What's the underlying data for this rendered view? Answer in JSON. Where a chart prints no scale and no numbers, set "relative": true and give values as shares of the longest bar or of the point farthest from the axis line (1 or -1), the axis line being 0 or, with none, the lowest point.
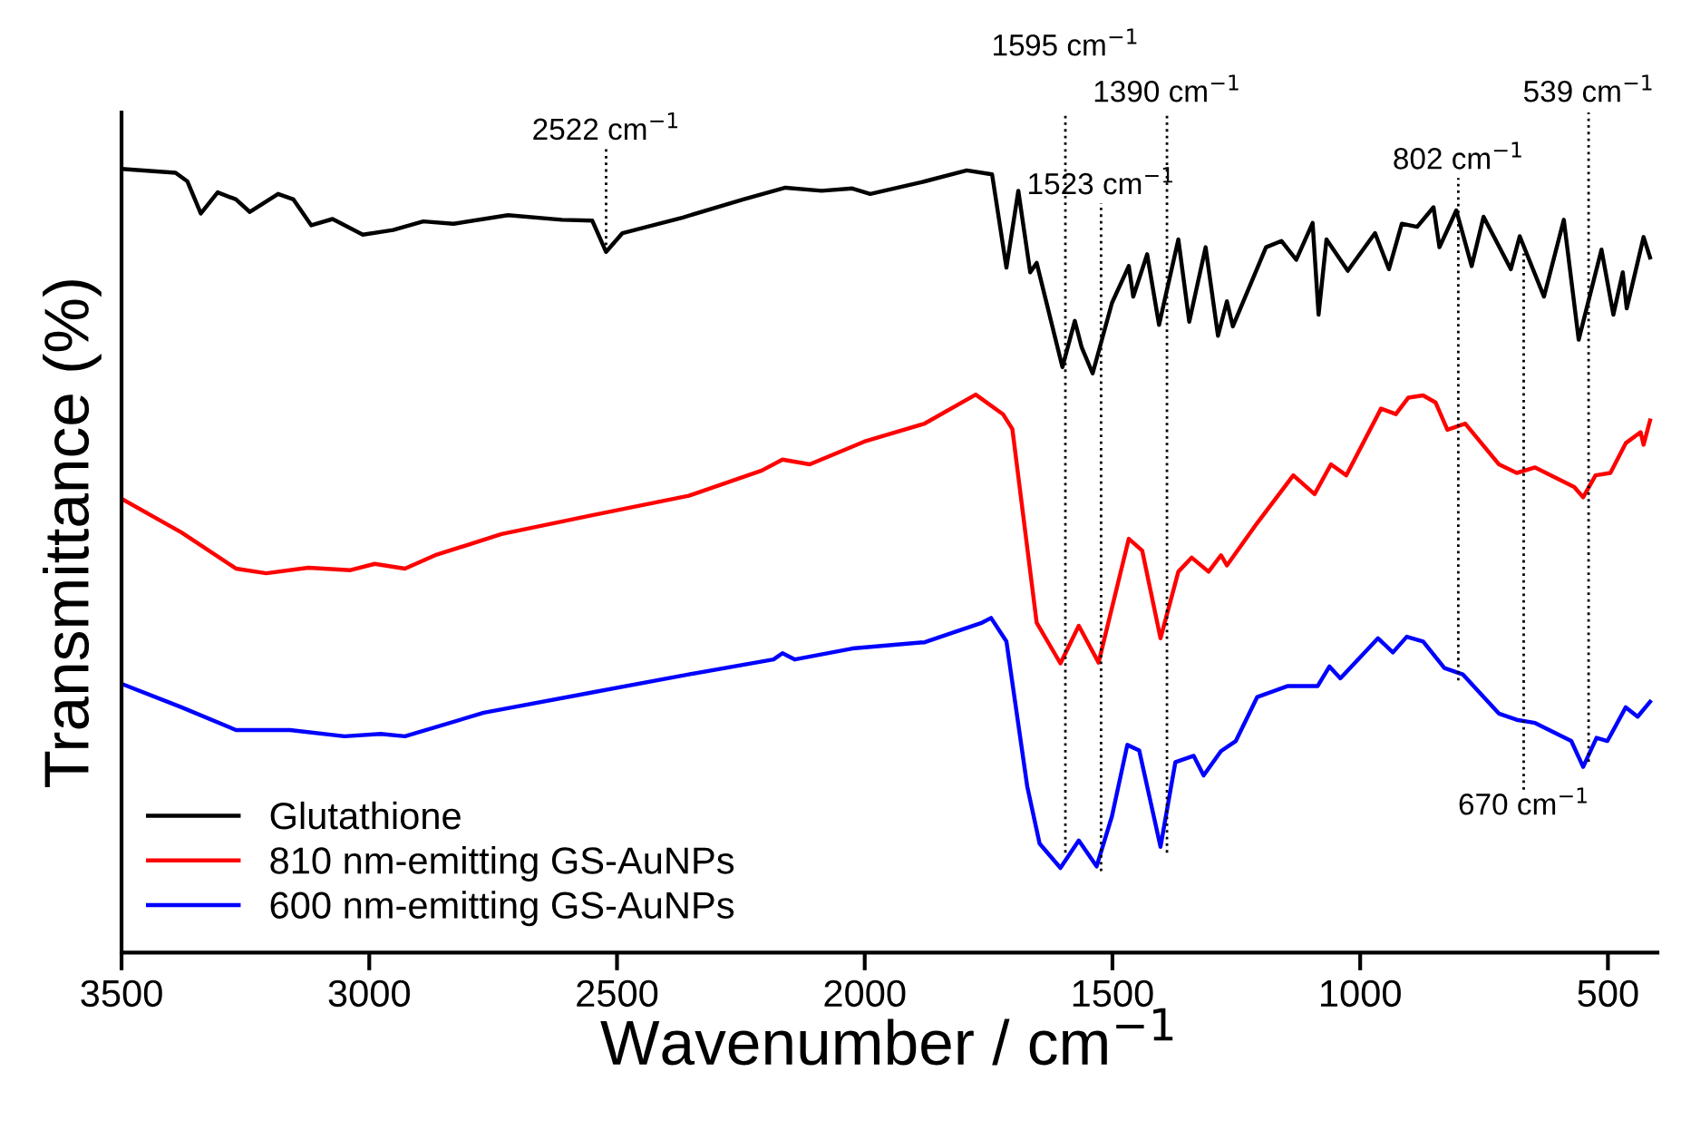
{
  "chart_data": {
    "type": "line",
    "relative": true,
    "xlabel": "Wavenumber / cm$^{−1}$",
    "ylabel": "Transmittance (%)",
    "xlim": [
      3500,
      400
    ],
    "xticks": [
      3500,
      3000,
      2500,
      2000,
      1500,
      1000,
      500
    ],
    "tick_labels": "x",
    "grid": false,
    "legend": "bottom left",
    "line_style": "solid",
    "series": [
      {
        "name": "Glutathione",
        "color": "#000000",
        "x": [
          3500,
          3391,
          3367,
          3340,
          3306,
          3269,
          3241,
          3184,
          3153,
          3117,
          3074,
          3013,
          2952,
          2891,
          2830,
          2720,
          2611,
          2550,
          2522,
          2489,
          2367,
          2245,
          2160,
          2087,
          2025,
          1989,
          1879,
          1794,
          1743,
          1714,
          1690,
          1666,
          1653,
          1601,
          1576,
          1562,
          1540,
          1501,
          1467,
          1458,
          1430,
          1406,
          1367,
          1345,
          1312,
          1287,
          1269,
          1257,
          1190,
          1159,
          1129,
          1096,
          1084,
          1068,
          1025,
          970,
          942,
          916,
          885,
          852,
          840,
          806,
          775,
          751,
          696,
          678,
          629,
          589,
          559,
          513,
          489,
          470,
          462,
          428,
          415
        ],
        "values": [
          1.0,
          0.995,
          0.984,
          0.943,
          0.97,
          0.961,
          0.945,
          0.968,
          0.961,
          0.928,
          0.936,
          0.916,
          0.922,
          0.933,
          0.93,
          0.941,
          0.935,
          0.934,
          0.894,
          0.918,
          0.938,
          0.961,
          0.976,
          0.972,
          0.975,
          0.968,
          0.984,
          0.998,
          0.993,
          0.874,
          0.972,
          0.868,
          0.88,
          0.747,
          0.806,
          0.772,
          0.739,
          0.829,
          0.876,
          0.837,
          0.891,
          0.801,
          0.91,
          0.805,
          0.9,
          0.787,
          0.831,
          0.799,
          0.9,
          0.908,
          0.884,
          0.931,
          0.814,
          0.91,
          0.87,
          0.918,
          0.872,
          0.93,
          0.926,
          0.951,
          0.9,
          0.947,
          0.876,
          0.939,
          0.872,
          0.914,
          0.837,
          0.935,
          0.782,
          0.897,
          0.814,
          0.868,
          0.822,
          0.913,
          0.887
        ]
      },
      {
        "name": "810 nm-emitting GS-AuNPs",
        "color": "#ff0000",
        "x": [
          3500,
          3379,
          3269,
          3208,
          3123,
          3038,
          2989,
          2928,
          2867,
          2733,
          2550,
          2355,
          2208,
          2166,
          2111,
          2001,
          1879,
          1776,
          1721,
          1702,
          1653,
          1605,
          1568,
          1528,
          1467,
          1440,
          1403,
          1367,
          1340,
          1306,
          1281,
          1269,
          1208,
          1135,
          1092,
          1059,
          1028,
          958,
          928,
          903,
          873,
          848,
          824,
          788,
          720,
          684,
          647,
          568,
          550,
          525,
          495,
          464,
          434,
          428,
          415
        ],
        "values": [
          0.579,
          0.536,
          0.49,
          0.484,
          0.491,
          0.488,
          0.496,
          0.49,
          0.507,
          0.534,
          0.558,
          0.583,
          0.615,
          0.629,
          0.623,
          0.652,
          0.675,
          0.712,
          0.687,
          0.668,
          0.421,
          0.369,
          0.417,
          0.37,
          0.528,
          0.513,
          0.401,
          0.486,
          0.504,
          0.486,
          0.507,
          0.494,
          0.548,
          0.609,
          0.585,
          0.623,
          0.609,
          0.694,
          0.687,
          0.708,
          0.711,
          0.702,
          0.667,
          0.675,
          0.623,
          0.612,
          0.619,
          0.594,
          0.581,
          0.609,
          0.612,
          0.65,
          0.664,
          0.648,
          0.679
        ]
      },
      {
        "name": "600 nm-emitting GS-AuNPs",
        "color": "#0000ff",
        "x": [
          3500,
          3379,
          3269,
          3160,
          3050,
          2977,
          2928,
          2769,
          2550,
          2355,
          2184,
          2166,
          2141,
          2025,
          1879,
          1763,
          1745,
          1714,
          1672,
          1647,
          1605,
          1568,
          1532,
          1501,
          1470,
          1446,
          1403,
          1373,
          1336,
          1316,
          1281,
          1251,
          1208,
          1147,
          1086,
          1062,
          1040,
          964,
          934,
          906,
          873,
          830,
          793,
          720,
          684,
          647,
          574,
          550,
          523,
          501,
          464,
          440,
          415
        ],
        "values": [
          0.343,
          0.313,
          0.284,
          0.284,
          0.276,
          0.279,
          0.276,
          0.306,
          0.332,
          0.355,
          0.374,
          0.382,
          0.374,
          0.388,
          0.396,
          0.421,
          0.427,
          0.397,
          0.212,
          0.139,
          0.108,
          0.143,
          0.11,
          0.174,
          0.265,
          0.258,
          0.135,
          0.243,
          0.251,
          0.226,
          0.257,
          0.27,
          0.326,
          0.34,
          0.34,
          0.365,
          0.35,
          0.401,
          0.383,
          0.403,
          0.397,
          0.363,
          0.355,
          0.305,
          0.297,
          0.293,
          0.27,
          0.237,
          0.274,
          0.27,
          0.313,
          0.301,
          0.32
        ]
      }
    ],
    "ref_lines": [
      {
        "axis": "x",
        "value": 2522,
        "label": "2522 cm$^{−1}$",
        "color": "#000000",
        "line_style": "dotted"
      },
      {
        "axis": "x",
        "value": 1595,
        "label": "1595 cm$^{−1}$",
        "color": "#000000",
        "line_style": "dotted"
      },
      {
        "axis": "x",
        "value": 1523,
        "label": "1523 cm$^{−1}$",
        "color": "#000000",
        "line_style": "dotted"
      },
      {
        "axis": "x",
        "value": 1390,
        "label": "1390 cm$^{−1}$",
        "color": "#000000",
        "line_style": "dotted"
      },
      {
        "axis": "x",
        "value": 802,
        "label": "802 cm$^{−1}$",
        "color": "#000000",
        "line_style": "dotted"
      },
      {
        "axis": "x",
        "value": 670,
        "label": "670 cm$^{−1}$",
        "color": "#000000",
        "line_style": "dotted"
      },
      {
        "axis": "x",
        "value": 539,
        "label": "539 cm$^{−1}$",
        "color": "#000000",
        "line_style": "dotted"
      }
    ]
  }
}
